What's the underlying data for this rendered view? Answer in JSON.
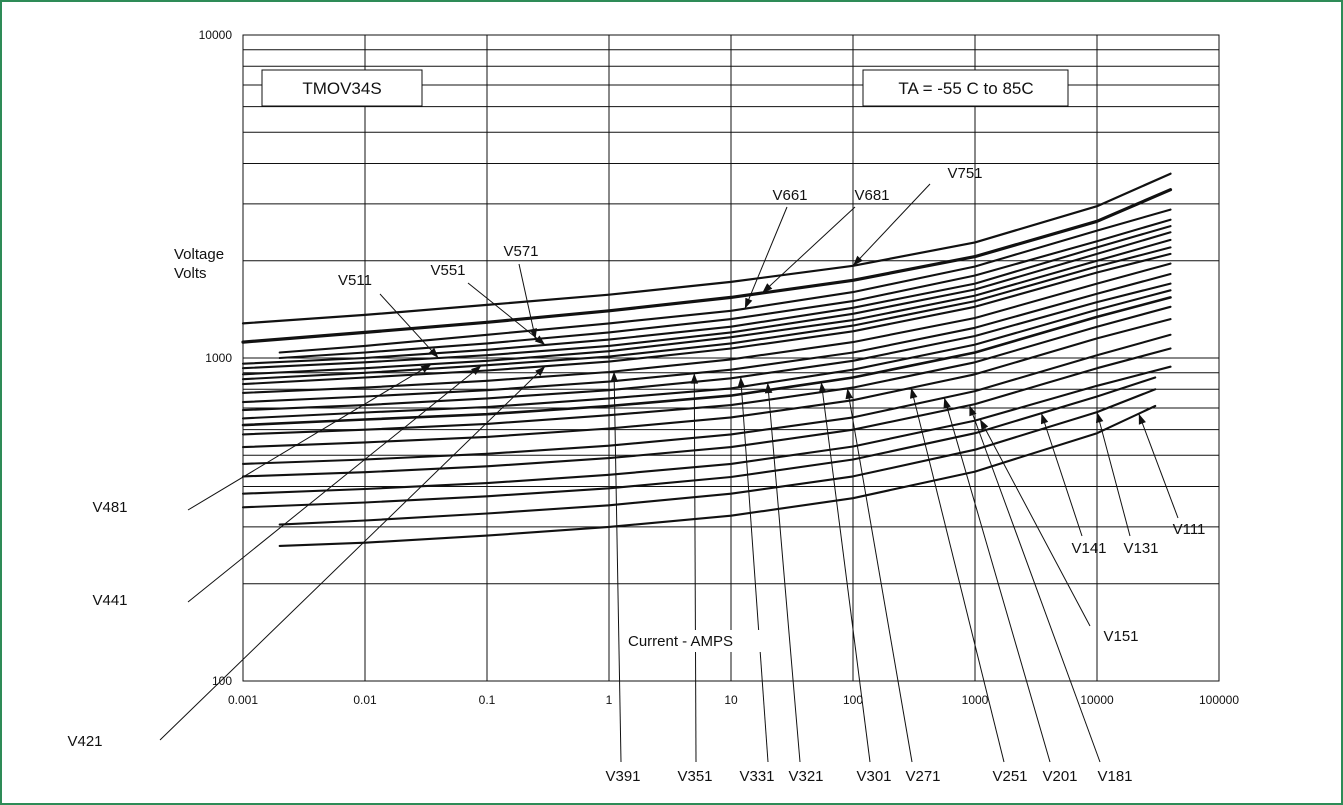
{
  "chart_data": {
    "type": "line",
    "title": "TMOV34S",
    "condition_label": "TA = -55 C to 85C",
    "xlabel": "Current - AMPS",
    "ylabel": [
      "Voltage",
      "Volts"
    ],
    "x_scale": "log",
    "y_scale": "log",
    "xlim": [
      0.001,
      100000
    ],
    "ylim": [
      100,
      10000
    ],
    "x_ticks": [
      "0.001",
      "0.01",
      "0.1",
      "1",
      "10",
      "100",
      "1000",
      "10000",
      "100000"
    ],
    "y_ticks": [
      "100",
      "1000",
      "10000"
    ],
    "grid": true,
    "series": [
      {
        "name": "V751",
        "values": [
          [
            0.001,
            1280
          ],
          [
            0.01,
            1360
          ],
          [
            0.1,
            1460
          ],
          [
            1,
            1570
          ],
          [
            10,
            1720
          ],
          [
            100,
            1930
          ],
          [
            1000,
            2280
          ],
          [
            10000,
            2950
          ],
          [
            40000,
            3720
          ]
        ]
      },
      {
        "name": "V681",
        "values": [
          [
            0.001,
            1120
          ],
          [
            0.01,
            1200
          ],
          [
            0.1,
            1290
          ],
          [
            1,
            1400
          ],
          [
            10,
            1540
          ],
          [
            100,
            1740
          ],
          [
            1000,
            2060
          ],
          [
            10000,
            2650
          ],
          [
            40000,
            3320
          ]
        ]
      },
      {
        "name": "V661",
        "values": [
          [
            0.002,
            1040
          ],
          [
            0.01,
            1090
          ],
          [
            0.1,
            1180
          ],
          [
            1,
            1280
          ],
          [
            10,
            1400
          ],
          [
            100,
            1600
          ],
          [
            1000,
            1920
          ],
          [
            10000,
            2480
          ],
          [
            40000,
            2880
          ]
        ]
      },
      {
        "name": "V571",
        "values": [
          [
            0.002,
            1000
          ],
          [
            0.01,
            1040
          ],
          [
            0.1,
            1110
          ],
          [
            1,
            1200
          ],
          [
            10,
            1320
          ],
          [
            100,
            1500
          ],
          [
            1000,
            1800
          ],
          [
            10000,
            2300
          ],
          [
            40000,
            2680
          ]
        ]
      },
      {
        "name": "V551",
        "values": [
          [
            0.001,
            960
          ],
          [
            0.01,
            1000
          ],
          [
            0.1,
            1060
          ],
          [
            1,
            1140
          ],
          [
            10,
            1250
          ],
          [
            100,
            1430
          ],
          [
            1000,
            1700
          ],
          [
            10000,
            2200
          ],
          [
            40000,
            2560
          ]
        ]
      },
      {
        "name": "V511",
        "values": [
          [
            0.001,
            930
          ],
          [
            0.01,
            970
          ],
          [
            0.1,
            1020
          ],
          [
            1,
            1090
          ],
          [
            10,
            1200
          ],
          [
            100,
            1370
          ],
          [
            1000,
            1630
          ],
          [
            10000,
            2100
          ],
          [
            40000,
            2450
          ]
        ]
      },
      {
        "name": "V481",
        "values": [
          [
            0.001,
            890
          ],
          [
            0.01,
            930
          ],
          [
            0.1,
            980
          ],
          [
            1,
            1050
          ],
          [
            10,
            1160
          ],
          [
            100,
            1310
          ],
          [
            1000,
            1560
          ],
          [
            10000,
            2000
          ],
          [
            40000,
            2320
          ]
        ]
      },
      {
        "name": "V441",
        "values": [
          [
            0.001,
            860
          ],
          [
            0.01,
            900
          ],
          [
            0.1,
            950
          ],
          [
            1,
            1010
          ],
          [
            10,
            1110
          ],
          [
            100,
            1260
          ],
          [
            1000,
            1500
          ],
          [
            10000,
            1920
          ],
          [
            40000,
            2200
          ]
        ]
      },
      {
        "name": "V421",
        "values": [
          [
            0.001,
            830
          ],
          [
            0.01,
            870
          ],
          [
            0.1,
            915
          ],
          [
            1,
            975
          ],
          [
            10,
            1070
          ],
          [
            100,
            1210
          ],
          [
            1000,
            1440
          ],
          [
            10000,
            1840
          ],
          [
            40000,
            2100
          ]
        ]
      },
      {
        "name": "V391",
        "values": [
          [
            0.001,
            780
          ],
          [
            0.01,
            810
          ],
          [
            0.1,
            850
          ],
          [
            1,
            905
          ],
          [
            10,
            990
          ],
          [
            100,
            1120
          ],
          [
            1000,
            1330
          ],
          [
            10000,
            1700
          ],
          [
            40000,
            1960
          ]
        ]
      },
      {
        "name": "V351",
        "values": [
          [
            0.001,
            730
          ],
          [
            0.01,
            760
          ],
          [
            0.1,
            795
          ],
          [
            1,
            845
          ],
          [
            10,
            920
          ],
          [
            100,
            1040
          ],
          [
            1000,
            1240
          ],
          [
            10000,
            1580
          ],
          [
            40000,
            1820
          ]
        ]
      },
      {
        "name": "V331",
        "values": [
          [
            0.001,
            690
          ],
          [
            0.01,
            715
          ],
          [
            0.1,
            750
          ],
          [
            1,
            795
          ],
          [
            10,
            865
          ],
          [
            100,
            980
          ],
          [
            1000,
            1170
          ],
          [
            10000,
            1490
          ],
          [
            40000,
            1700
          ]
        ]
      },
      {
        "name": "V321",
        "values": [
          [
            0.001,
            650
          ],
          [
            0.01,
            678
          ],
          [
            0.1,
            705
          ],
          [
            1,
            750
          ],
          [
            10,
            805
          ],
          [
            100,
            920
          ],
          [
            1000,
            1100
          ],
          [
            10000,
            1410
          ],
          [
            40000,
            1620
          ]
        ]
      },
      {
        "name": "V301",
        "values": [
          [
            0.001,
            620
          ],
          [
            0.01,
            645
          ],
          [
            0.1,
            670
          ],
          [
            1,
            710
          ],
          [
            10,
            765
          ],
          [
            100,
            870
          ],
          [
            1000,
            1040
          ],
          [
            10000,
            1340
          ],
          [
            40000,
            1540
          ]
        ]
      },
      {
        "name": "V271",
        "values": [
          [
            0.001,
            580
          ],
          [
            0.01,
            600
          ],
          [
            0.1,
            625
          ],
          [
            1,
            665
          ],
          [
            10,
            715
          ],
          [
            100,
            810
          ],
          [
            1000,
            970
          ],
          [
            10000,
            1250
          ],
          [
            40000,
            1440
          ]
        ]
      },
      {
        "name": "V251",
        "values": [
          [
            0.001,
            530
          ],
          [
            0.01,
            548
          ],
          [
            0.1,
            570
          ],
          [
            1,
            605
          ],
          [
            10,
            655
          ],
          [
            100,
            740
          ],
          [
            1000,
            890
          ],
          [
            10000,
            1150
          ],
          [
            40000,
            1320
          ]
        ]
      },
      {
        "name": "V201",
        "values": [
          [
            0.001,
            470
          ],
          [
            0.01,
            485
          ],
          [
            0.1,
            505
          ],
          [
            1,
            535
          ],
          [
            10,
            580
          ],
          [
            100,
            655
          ],
          [
            1000,
            790
          ],
          [
            10000,
            1020
          ],
          [
            40000,
            1180
          ]
        ]
      },
      {
        "name": "V181",
        "values": [
          [
            0.001,
            430
          ],
          [
            0.01,
            443
          ],
          [
            0.1,
            462
          ],
          [
            1,
            490
          ],
          [
            10,
            530
          ],
          [
            100,
            600
          ],
          [
            1000,
            720
          ],
          [
            10000,
            930
          ],
          [
            40000,
            1070
          ]
        ]
      },
      {
        "name": "V151",
        "values": [
          [
            0.001,
            380
          ],
          [
            0.01,
            393
          ],
          [
            0.1,
            410
          ],
          [
            1,
            435
          ],
          [
            10,
            470
          ],
          [
            100,
            532
          ],
          [
            1000,
            640
          ],
          [
            10000,
            820
          ],
          [
            40000,
            940
          ]
        ]
      },
      {
        "name": "V141",
        "values": [
          [
            0.001,
            345
          ],
          [
            0.01,
            357
          ],
          [
            0.1,
            373
          ],
          [
            1,
            395
          ],
          [
            10,
            428
          ],
          [
            100,
            485
          ],
          [
            1000,
            585
          ],
          [
            10000,
            760
          ],
          [
            30000,
            870
          ]
        ]
      },
      {
        "name": "V131",
        "values": [
          [
            0.002,
            305
          ],
          [
            0.01,
            314
          ],
          [
            0.1,
            330
          ],
          [
            1,
            350
          ],
          [
            10,
            380
          ],
          [
            100,
            430
          ],
          [
            1000,
            520
          ],
          [
            10000,
            680
          ],
          [
            30000,
            800
          ]
        ]
      },
      {
        "name": "V111",
        "values": [
          [
            0.002,
            262
          ],
          [
            0.01,
            268
          ],
          [
            0.1,
            282
          ],
          [
            1,
            300
          ],
          [
            10,
            325
          ],
          [
            100,
            368
          ],
          [
            1000,
            445
          ],
          [
            10000,
            585
          ],
          [
            30000,
            710
          ]
        ]
      }
    ],
    "callouts": [
      {
        "series": "V751",
        "text": "V751"
      },
      {
        "series": "V681",
        "text": "V681"
      },
      {
        "series": "V661",
        "text": "V661"
      },
      {
        "series": "V571",
        "text": "V571"
      },
      {
        "series": "V551",
        "text": "V551"
      },
      {
        "series": "V511",
        "text": "V511"
      },
      {
        "series": "V481",
        "text": "V481"
      },
      {
        "series": "V441",
        "text": "V441"
      },
      {
        "series": "V421",
        "text": "V421"
      },
      {
        "series": "V391",
        "text": "V391"
      },
      {
        "series": "V351",
        "text": "V351"
      },
      {
        "series": "V331",
        "text": "V331"
      },
      {
        "series": "V321",
        "text": "V321"
      },
      {
        "series": "V301",
        "text": "V301"
      },
      {
        "series": "V271",
        "text": "V271"
      },
      {
        "series": "V251",
        "text": "V251"
      },
      {
        "series": "V201",
        "text": "V201"
      },
      {
        "series": "V181",
        "text": "V181"
      },
      {
        "series": "V151",
        "text": "V151"
      },
      {
        "series": "V141",
        "text": "V141"
      },
      {
        "series": "V131",
        "text": "V131"
      },
      {
        "series": "V111",
        "text": "V111"
      }
    ],
    "colors": {
      "line": "#111111",
      "grid": "#111111",
      "frame": "#2e8b57"
    }
  }
}
